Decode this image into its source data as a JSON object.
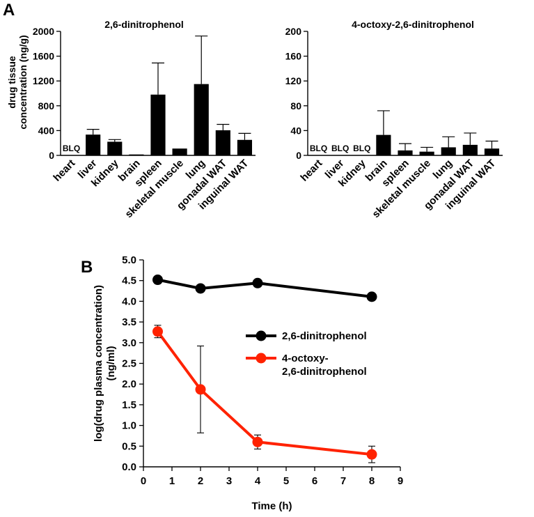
{
  "panel_labels": {
    "a": "A",
    "b": "B"
  },
  "shared": {
    "ylabel_line1": "drug tissue",
    "ylabel_line2": "concentration (ng/g)"
  },
  "chart_data": [
    {
      "type": "bar",
      "title": "2,6-dinitrophenol",
      "xlabel": "",
      "ylabel": "drug tissue concentration (ng/g)",
      "ylim": [
        0,
        2000
      ],
      "yticks": [
        0,
        400,
        800,
        1200,
        1600,
        2000
      ],
      "ytick_labels": [
        "0",
        "400",
        "800",
        "1200",
        "1600",
        "2000"
      ],
      "categories": [
        "heart",
        "liver",
        "kidney",
        "brain",
        "spleen",
        "skeletal muscle",
        "lung",
        "gonadal WAT",
        "inguinal WAT"
      ],
      "values": [
        0,
        335,
        220,
        15,
        980,
        110,
        1150,
        405,
        250
      ],
      "errors": [
        0,
        85,
        35,
        0,
        510,
        0,
        775,
        95,
        105
      ],
      "annotations": [
        "BLQ",
        "",
        "",
        "",
        "",
        "",
        "",
        "",
        ""
      ],
      "bar_color": "#000000"
    },
    {
      "type": "bar",
      "title": "4-octoxy-2,6-dinitrophenol",
      "xlabel": "",
      "ylabel": "",
      "ylim": [
        0,
        200
      ],
      "yticks": [
        0,
        40,
        80,
        120,
        160,
        200
      ],
      "ytick_labels": [
        "0",
        "40",
        "80",
        "120",
        "160",
        "200"
      ],
      "categories": [
        "heart",
        "liver",
        "kidney",
        "brain",
        "spleen",
        "skeletal muscle",
        "lung",
        "gonadal WAT",
        "inguinal WAT"
      ],
      "values": [
        0,
        0,
        0,
        33,
        8,
        6,
        13,
        17,
        11
      ],
      "errors": [
        0,
        0,
        0,
        39,
        11,
        7,
        17,
        19,
        12
      ],
      "annotations": [
        "BLQ",
        "BLQ",
        "BLQ",
        "",
        "",
        "",
        "",
        "",
        ""
      ],
      "bar_color": "#000000"
    },
    {
      "type": "line",
      "title": "",
      "xlabel": "Time (h)",
      "ylabel_line1": "log(drug plasma concentration)",
      "ylabel_line2": "(ng/ml)",
      "xlim": [
        0,
        9
      ],
      "ylim": [
        0,
        5
      ],
      "xticks": [
        0,
        1,
        2,
        3,
        4,
        5,
        6,
        7,
        8,
        9
      ],
      "xtick_labels": [
        "0",
        "1",
        "2",
        "3",
        "4",
        "5",
        "6",
        "7",
        "8",
        "9"
      ],
      "yticks": [
        0,
        0.5,
        1,
        1.5,
        2,
        2.5,
        3,
        3.5,
        4,
        4.5,
        5
      ],
      "ytick_labels": [
        "0.0",
        "0.5",
        "1.0",
        "1.5",
        "2.0",
        "2.5",
        "3.0",
        "3.5",
        "4.0",
        "4.5",
        "5.0"
      ],
      "legend_position": "center-right",
      "series": [
        {
          "name": "2,6-dinitrophenol",
          "legend_lines": [
            "2,6-dinitrophenol"
          ],
          "color": "#000000",
          "x": [
            0.5,
            2,
            4,
            8
          ],
          "y": [
            4.52,
            4.31,
            4.44,
            4.11
          ],
          "errors": [
            0.04,
            0.03,
            0.04,
            0.03
          ]
        },
        {
          "name": "4-octoxy-2,6-dinitrophenol",
          "legend_lines": [
            "4-octoxy-",
            "2,6-dinitrophenol"
          ],
          "color": "#ff2200",
          "x": [
            0.5,
            2,
            4,
            8
          ],
          "y": [
            3.27,
            1.87,
            0.6,
            0.3
          ],
          "errors": [
            0.15,
            1.05,
            0.17,
            0.2
          ]
        }
      ]
    }
  ]
}
